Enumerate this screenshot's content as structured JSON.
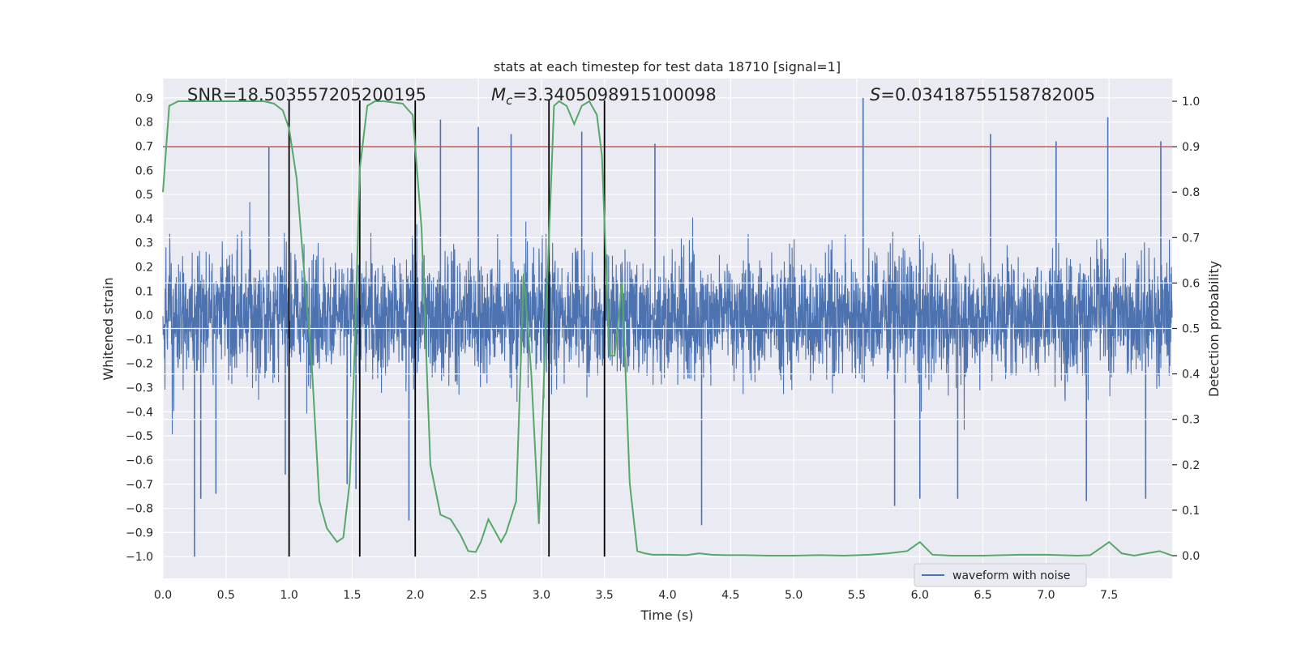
{
  "chart_data": {
    "type": "line",
    "title": "stats at each timestep for test data 18710 [signal=1]",
    "xlabel": "Time (s)",
    "ylabel": "Whitened strain",
    "y2label": "Detection probability",
    "xlim": [
      0.0,
      8.0
    ],
    "ylim": [
      -1.09,
      0.98
    ],
    "y2lim": [
      -0.05,
      1.05
    ],
    "xticks": [
      "0.0",
      "0.5",
      "1.0",
      "1.5",
      "2.0",
      "2.5",
      "3.0",
      "3.5",
      "4.0",
      "4.5",
      "5.0",
      "5.5",
      "6.0",
      "6.5",
      "7.0",
      "7.5"
    ],
    "xtick_values": [
      0.0,
      0.5,
      1.0,
      1.5,
      2.0,
      2.5,
      3.0,
      3.5,
      4.0,
      4.5,
      5.0,
      5.5,
      6.0,
      6.5,
      7.0,
      7.5
    ],
    "yticks": [
      "0.9",
      "0.8",
      "0.7",
      "0.6",
      "0.5",
      "0.4",
      "0.3",
      "0.2",
      "0.1",
      "0.0",
      "−0.1",
      "−0.2",
      "−0.3",
      "−0.4",
      "−0.5",
      "−0.6",
      "−0.7",
      "−0.8",
      "−0.9",
      "−1.0"
    ],
    "ytick_values": [
      0.9,
      0.8,
      0.7,
      0.6,
      0.5,
      0.4,
      0.3,
      0.2,
      0.1,
      0.0,
      -0.1,
      -0.2,
      -0.3,
      -0.4,
      -0.5,
      -0.6,
      -0.7,
      -0.8,
      -0.9,
      -1.0
    ],
    "y2ticks": [
      "1.0",
      "0.9",
      "0.8",
      "0.7",
      "0.6",
      "0.5",
      "0.4",
      "0.3",
      "0.2",
      "0.1",
      "0.0"
    ],
    "y2tick_values": [
      1.0,
      0.9,
      0.8,
      0.7,
      0.6,
      0.5,
      0.4,
      0.3,
      0.2,
      0.1,
      0.0
    ],
    "annotations": {
      "snr": "SNR=18.503557205200195",
      "mc_symbol": "M",
      "mc_sub": "c",
      "mc_value": "=3.3405098915100098",
      "s_symbol": "S",
      "s_value": "=0.03418755158782005"
    },
    "threshold": {
      "value": 0.9,
      "axis": "y2",
      "color": "#c44e52"
    },
    "vertical_lines": [
      1.0,
      1.56,
      2.0,
      3.06,
      3.5
    ],
    "waveform": {
      "name": "waveform with noise",
      "color": "#4c72b0",
      "duration_s": 8.0,
      "typical_amplitude": 0.35,
      "extremes": [
        {
          "t": 0.25,
          "v": -1.0
        },
        {
          "t": 0.3,
          "v": -0.76
        },
        {
          "t": 0.42,
          "v": -0.74
        },
        {
          "t": 0.84,
          "v": 0.7
        },
        {
          "t": 0.97,
          "v": -0.66
        },
        {
          "t": 1.0,
          "v": -0.72
        },
        {
          "t": 1.46,
          "v": -0.7
        },
        {
          "t": 1.53,
          "v": -0.72
        },
        {
          "t": 1.95,
          "v": -0.85
        },
        {
          "t": 2.2,
          "v": 0.81
        },
        {
          "t": 2.5,
          "v": 0.78
        },
        {
          "t": 2.76,
          "v": 0.75
        },
        {
          "t": 3.32,
          "v": 0.76
        },
        {
          "t": 3.9,
          "v": 0.71
        },
        {
          "t": 4.27,
          "v": -0.87
        },
        {
          "t": 5.55,
          "v": 0.9
        },
        {
          "t": 5.8,
          "v": -0.79
        },
        {
          "t": 6.3,
          "v": -0.76
        },
        {
          "t": 6.56,
          "v": 0.75
        },
        {
          "t": 7.08,
          "v": 0.72
        },
        {
          "t": 7.32,
          "v": -0.77
        },
        {
          "t": 7.49,
          "v": 0.82
        },
        {
          "t": 7.79,
          "v": -0.76
        },
        {
          "t": 7.91,
          "v": 0.72
        },
        {
          "t": 6.0,
          "v": -0.76
        }
      ]
    },
    "detection_probability": {
      "color": "#55a868",
      "x": [
        0.0,
        0.05,
        0.12,
        0.2,
        0.5,
        0.8,
        0.88,
        0.95,
        1.0,
        1.06,
        1.12,
        1.18,
        1.24,
        1.3,
        1.38,
        1.43,
        1.48,
        1.52,
        1.56,
        1.62,
        1.68,
        1.75,
        1.9,
        1.98,
        2.05,
        2.12,
        2.2,
        2.28,
        2.36,
        2.42,
        2.48,
        2.52,
        2.58,
        2.62,
        2.68,
        2.72,
        2.8,
        2.86,
        2.92,
        2.98,
        3.04,
        3.1,
        3.14,
        3.2,
        3.26,
        3.32,
        3.38,
        3.44,
        3.48,
        3.54,
        3.58,
        3.64,
        3.7,
        3.76,
        3.82,
        3.88,
        4.0,
        4.15,
        4.25,
        4.35,
        4.45,
        4.6,
        4.8,
        5.0,
        5.2,
        5.4,
        5.6,
        5.75,
        5.9,
        6.0,
        6.1,
        6.25,
        6.5,
        6.8,
        7.0,
        7.25,
        7.35,
        7.45,
        7.5,
        7.6,
        7.7,
        7.8,
        7.9,
        8.0
      ],
      "y": [
        0.8,
        0.99,
        1.0,
        1.0,
        1.0,
        1.0,
        0.995,
        0.98,
        0.94,
        0.83,
        0.62,
        0.42,
        0.12,
        0.06,
        0.03,
        0.04,
        0.16,
        0.45,
        0.85,
        0.99,
        1.0,
        1.0,
        0.995,
        0.97,
        0.72,
        0.2,
        0.09,
        0.08,
        0.045,
        0.01,
        0.008,
        0.03,
        0.08,
        0.06,
        0.03,
        0.05,
        0.12,
        0.62,
        0.4,
        0.07,
        0.55,
        0.99,
        1.0,
        0.99,
        0.95,
        0.99,
        1.0,
        0.97,
        0.88,
        0.44,
        0.44,
        0.6,
        0.16,
        0.01,
        0.005,
        0.002,
        0.002,
        0.001,
        0.005,
        0.002,
        0.001,
        0.001,
        0.0,
        0.0,
        0.001,
        0.0,
        0.002,
        0.005,
        0.01,
        0.03,
        0.002,
        0.0,
        0.0,
        0.002,
        0.002,
        0.0,
        0.001,
        0.02,
        0.03,
        0.005,
        0.0,
        0.005,
        0.01,
        0.0
      ]
    },
    "legend": {
      "label": "waveform with noise",
      "placement": "lower-right"
    },
    "grid": true
  }
}
